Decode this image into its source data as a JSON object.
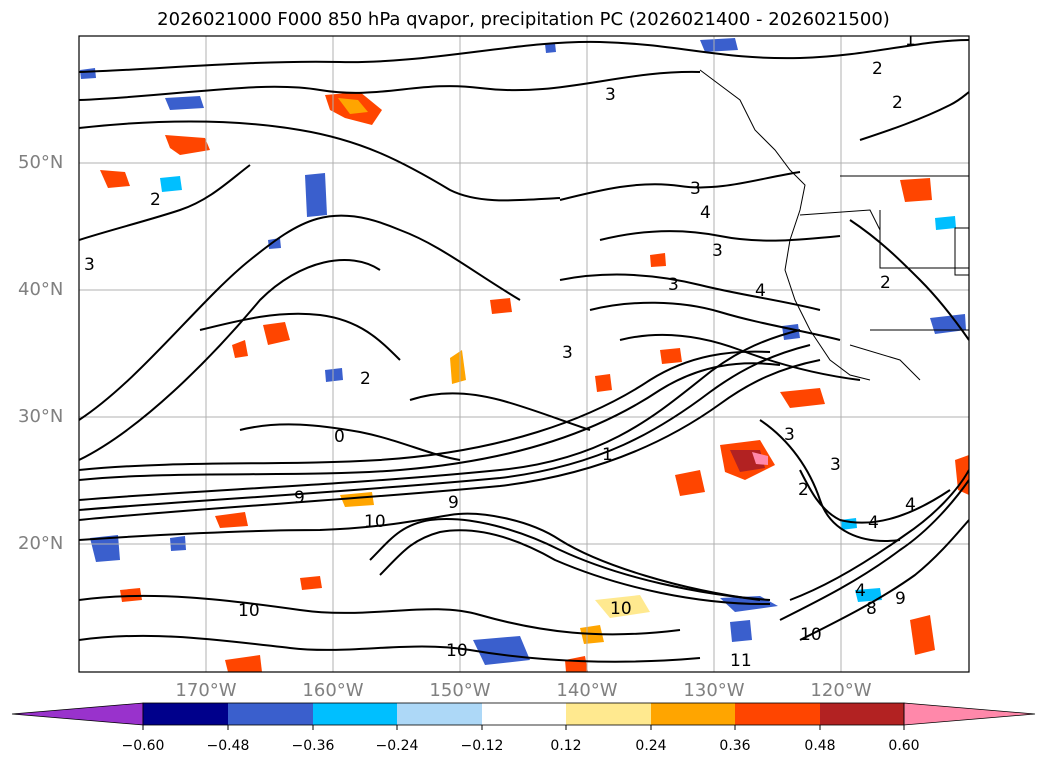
{
  "title": "2026021000 F000 850 hPa qvapor, precipitation PC (2026021400 - 2026021500)",
  "map": {
    "lat_labels": [
      "50°N",
      "40°N",
      "30°N",
      "20°N"
    ],
    "lon_labels": [
      "170°W",
      "160°W",
      "150°W",
      "140°W",
      "130°W",
      "120°W"
    ],
    "contour_labels": [
      "1",
      "2",
      "2",
      "2",
      "3",
      "3",
      "3",
      "4",
      "3",
      "4",
      "3",
      "1",
      "2",
      "3",
      "0",
      "9",
      "9",
      "10",
      "10",
      "10",
      "11",
      "10",
      "3",
      "4",
      "4",
      "4",
      "9",
      "8",
      "10",
      "2",
      "3",
      "2"
    ]
  },
  "colorbar": {
    "tick_labels": [
      "−0.60",
      "−0.48",
      "−0.36",
      "−0.24",
      "−0.12",
      "0.12",
      "0.24",
      "0.36",
      "0.48",
      "0.60"
    ],
    "colors": [
      "#9932cc",
      "#00008b",
      "#3a5fcd",
      "#00bfff",
      "#add8f7",
      "#ffffff",
      "#ffe98f",
      "#ffa500",
      "#ff4500",
      "#b22222",
      "#ff88aa"
    ]
  }
}
